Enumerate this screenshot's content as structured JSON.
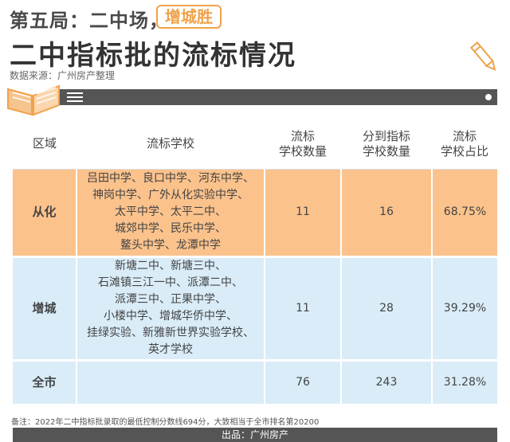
{
  "header": {
    "title_prefix": "第五局：二中场，",
    "badge": "增城胜",
    "title": "二中指标批的流标情况",
    "source": "数据来源：广州房产整理"
  },
  "icons": {
    "book": "open-book-icon",
    "pencil": "pencil-icon",
    "menu": "hamburger-menu-icon"
  },
  "colors": {
    "accent": "#f0a24a",
    "row_conghua": "#fbc28c",
    "row_other": "#d9ecf8",
    "bar": "#555555"
  },
  "table": {
    "headers": [
      [
        "区域"
      ],
      [
        "流标学校"
      ],
      [
        "流标",
        "学校数量"
      ],
      [
        "分到指标",
        "学校数量"
      ],
      [
        "流标",
        "学校占比"
      ]
    ],
    "rows": [
      {
        "region": "从化",
        "schools": [
          "吕田中学、良口中学、河东中学、",
          "神岗中学、广外从化实验中学、",
          "太平中学、太平二中、",
          "城郊中学、民乐中学、",
          "鳌头中学、龙潭中学"
        ],
        "count": "11",
        "assigned": "16",
        "ratio": "68.75%"
      },
      {
        "region": "增城",
        "schools": [
          "新塘二中、新塘三中、",
          "石滩镇三江一中、派潭二中、",
          "派潭三中、正果中学、",
          "小楼中学、增城华侨中学、",
          "挂绿实验、新雅新世界实验学校、",
          "英才学校"
        ],
        "count": "11",
        "assigned": "28",
        "ratio": "39.29%"
      },
      {
        "region": "全市",
        "schools": [],
        "count": "76",
        "assigned": "243",
        "ratio": "31.28%"
      }
    ]
  },
  "note": "备注：2022年二中指标批录取的最低控制分数线694分，大致相当于全市排名第20200",
  "footer": "出品：广州房产"
}
